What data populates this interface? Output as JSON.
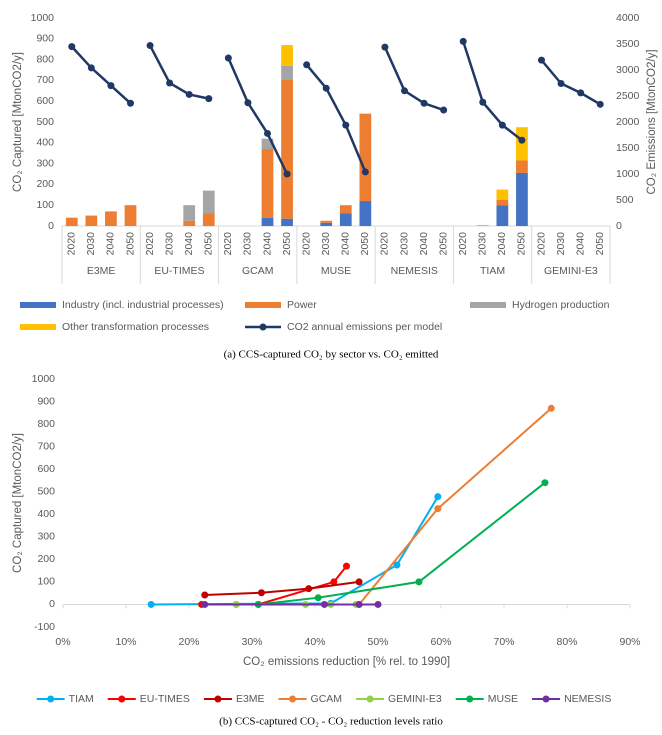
{
  "chart_data": [
    {
      "type": "bar",
      "caption": "(a) CCS-captured CO₂ by sector vs. CO₂ emitted",
      "y_label": "CO₂ Captured [MtonCO2/y]",
      "y2_label": "CO₂ Emissions [MtonCO2/y]",
      "categories": [
        "2020",
        "2030",
        "2040",
        "2050",
        "2020",
        "2030",
        "2040",
        "2050",
        "2020",
        "2030",
        "2040",
        "2050",
        "2020",
        "2030",
        "2040",
        "2050",
        "2020",
        "2030",
        "2040",
        "2050",
        "2020",
        "2030",
        "2040",
        "2050",
        "2020",
        "2030",
        "2040",
        "2050"
      ],
      "groups": [
        "E3ME",
        "EU-TIMES",
        "GCAM",
        "MUSE",
        "NEMESIS",
        "TIAM",
        "GEMINI-E3"
      ],
      "ylim": [
        0,
        1000
      ],
      "yticks": [
        0,
        100,
        200,
        300,
        400,
        500,
        600,
        700,
        800,
        900,
        1000
      ],
      "y2lim": [
        0,
        4000
      ],
      "y2ticks": [
        0,
        500,
        1000,
        1500,
        2000,
        2500,
        3000,
        3500,
        4000
      ],
      "grid": false,
      "series": [
        {
          "name": "Industry (incl. industrial processes)",
          "color": "#4472c4",
          "values": [
            0,
            0,
            0,
            0,
            0,
            0,
            0,
            0,
            0,
            0,
            40,
            35,
            0,
            15,
            60,
            120,
            0,
            0,
            0,
            0,
            0,
            0,
            100,
            255,
            0,
            0,
            0,
            0
          ]
        },
        {
          "name": "Power",
          "color": "#ed7d31",
          "values": [
            40,
            50,
            70,
            100,
            0,
            0,
            25,
            60,
            0,
            0,
            330,
            670,
            0,
            10,
            40,
            420,
            0,
            0,
            0,
            0,
            0,
            0,
            25,
            60,
            0,
            0,
            0,
            0
          ]
        },
        {
          "name": "Hydrogen production",
          "color": "#a5a5a5",
          "values": [
            0,
            0,
            0,
            0,
            0,
            0,
            75,
            110,
            0,
            0,
            50,
            65,
            0,
            0,
            0,
            0,
            0,
            0,
            0,
            0,
            0,
            0,
            0,
            0,
            0,
            0,
            0,
            0
          ]
        },
        {
          "name": "Other transformation processes",
          "color": "#ffc000",
          "values": [
            0,
            0,
            0,
            0,
            0,
            0,
            0,
            0,
            0,
            0,
            0,
            100,
            0,
            0,
            0,
            0,
            0,
            0,
            0,
            0,
            0,
            5,
            50,
            160,
            0,
            0,
            0,
            0
          ]
        },
        {
          "name": "CO2 annual emissions per model",
          "color": "#203864",
          "type": "line",
          "axis": "y2",
          "values": [
            3450,
            3040,
            2700,
            2360,
            3470,
            2750,
            2530,
            2450,
            3230,
            2370,
            1780,
            1000,
            3100,
            2650,
            1940,
            1040,
            3440,
            2600,
            2360,
            2230,
            3550,
            2380,
            1940,
            1650,
            3190,
            2740,
            2560,
            2340
          ]
        }
      ]
    },
    {
      "type": "line",
      "caption": "(b) CCS-captured CO₂ - CO₂ reduction levels ratio",
      "x_label": "CO₂ emissions reduction [% rel. to 1990]",
      "y_label": "CO₂ Captured [MtonCO2/y]",
      "xlim": [
        0,
        90
      ],
      "xticks": [
        {
          "value": 0,
          "label": "0%"
        },
        {
          "value": 10,
          "label": "10%"
        },
        {
          "value": 20,
          "label": "20%"
        },
        {
          "value": 30,
          "label": "30%"
        },
        {
          "value": 40,
          "label": "40%"
        },
        {
          "value": 50,
          "label": "50%"
        },
        {
          "value": 60,
          "label": "60%"
        },
        {
          "value": 70,
          "label": "70%"
        },
        {
          "value": 80,
          "label": "80%"
        },
        {
          "value": 90,
          "label": "90%"
        }
      ],
      "ylim": [
        -100,
        1000
      ],
      "yticks": [
        -100,
        0,
        100,
        200,
        300,
        400,
        500,
        600,
        700,
        800,
        900,
        1000
      ],
      "grid": false,
      "series": [
        {
          "name": "TIAM",
          "color": "#00b0f0",
          "x": [
            14,
            42.5,
            53,
            59.5
          ],
          "values": [
            0,
            5,
            175,
            478
          ]
        },
        {
          "name": "EU-TIMES",
          "color": "#ff0000",
          "x": [
            22,
            31,
            43,
            45
          ],
          "values": [
            0,
            0,
            100,
            170
          ]
        },
        {
          "name": "E3ME",
          "color": "#c00000",
          "x": [
            22.5,
            31.5,
            39,
            47
          ],
          "values": [
            42,
            52,
            70,
            100
          ]
        },
        {
          "name": "GCAM",
          "color": "#ed7d31",
          "x": [
            27.5,
            47,
            59.5,
            77.5
          ],
          "values": [
            0,
            0,
            425,
            870
          ]
        },
        {
          "name": "GEMINI-E3",
          "color": "#92d050",
          "x": [
            27.5,
            38.5,
            42.5,
            46.5
          ],
          "values": [
            0,
            0,
            0,
            0
          ]
        },
        {
          "name": "MUSE",
          "color": "#00b050",
          "x": [
            31,
            40.5,
            56.5,
            76.5
          ],
          "values": [
            0,
            30,
            100,
            540
          ]
        },
        {
          "name": "NEMESIS",
          "color": "#7030a0",
          "x": [
            22.5,
            41.5,
            47,
            50
          ],
          "values": [
            0,
            0,
            0,
            0
          ]
        }
      ]
    }
  ]
}
